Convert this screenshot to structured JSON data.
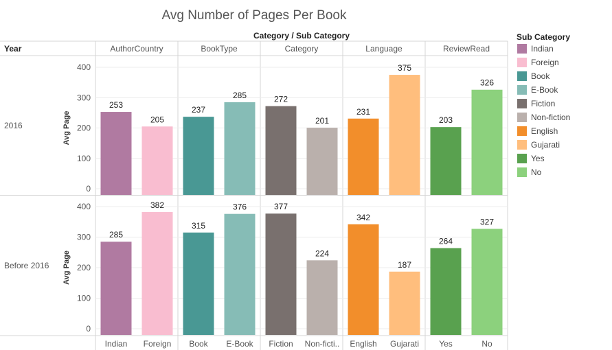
{
  "chart_data": {
    "type": "bar",
    "title": "Avg Number of Pages Per Book",
    "column_header": "Category / Sub Category",
    "row_header": "Year",
    "ylabel": "Avg Page",
    "ylim": [
      0,
      420
    ],
    "yticks": [
      0,
      100,
      200,
      300,
      400
    ],
    "groups": [
      "AuthorCountry",
      "BookType",
      "Category",
      "Language",
      "ReviewRead"
    ],
    "categories": [
      "Indian",
      "Foreign",
      "Book",
      "E-Book",
      "Fiction",
      "Non-fiction",
      "English",
      "Gujarati",
      "Yes",
      "No"
    ],
    "category_labels": [
      "Indian",
      "Foreign",
      "Book",
      "E-Book",
      "Fiction",
      "Non-ficti..",
      "English",
      "Gujarati",
      "Yes",
      "No"
    ],
    "colors": [
      "#b07aa1",
      "#f9bdd0",
      "#499894",
      "#86bcb6",
      "#79706e",
      "#bab0ac",
      "#f28e2b",
      "#ffbe7d",
      "#59a14f",
      "#8cd17d"
    ],
    "series": [
      {
        "name": "2016",
        "values": [
          253,
          205,
          237,
          285,
          272,
          201,
          231,
          375,
          203,
          326
        ]
      },
      {
        "name": "Before 2016",
        "values": [
          285,
          382,
          315,
          376,
          377,
          224,
          342,
          187,
          264,
          327
        ]
      }
    ],
    "legend": {
      "title": "Sub Category",
      "position": "right",
      "items": [
        "Indian",
        "Foreign",
        "Book",
        "E-Book",
        "Fiction",
        "Non-fiction",
        "English",
        "Gujarati",
        "Yes",
        "No"
      ]
    },
    "grid": true
  }
}
